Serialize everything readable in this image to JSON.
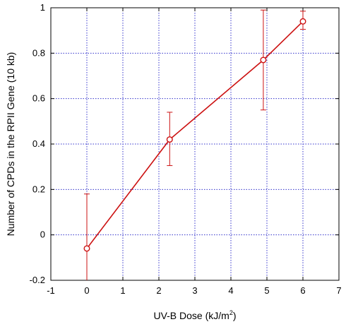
{
  "chart_data": {
    "type": "line",
    "xlabel": "UV-B Dose (kJ/m",
    "xlabel_superscript": "2",
    "xlabel_suffix": ")",
    "ylabel": "Number of CPDs in the RPII Gene (10 kb)",
    "xlim": [
      -1,
      7
    ],
    "ylim": [
      -0.2,
      1
    ],
    "x_ticks": [
      "-1",
      "0",
      "1",
      "2",
      "3",
      "4",
      "5",
      "6",
      "7"
    ],
    "y_ticks": [
      "-0.2",
      "0",
      "0.2",
      "0.4",
      "0.6",
      "0.8",
      "1"
    ],
    "x_tick_values": [
      -1,
      0,
      1,
      2,
      3,
      4,
      5,
      6,
      7
    ],
    "y_tick_values": [
      -0.2,
      0,
      0.2,
      0.4,
      0.6,
      0.8,
      1
    ],
    "grid": true,
    "colors": {
      "series": "#cc1111",
      "grid": "#3333cc",
      "axes": "#000000"
    },
    "series": [
      {
        "x": [
          0,
          2.3,
          4.9,
          6
        ],
        "y": [
          -0.06,
          0.42,
          0.77,
          0.94
        ],
        "error_low": [
          -0.2,
          0.305,
          0.55,
          0.905
        ],
        "error_high": [
          0.18,
          0.54,
          0.99,
          0.985
        ],
        "marker": "open-circle"
      }
    ]
  }
}
